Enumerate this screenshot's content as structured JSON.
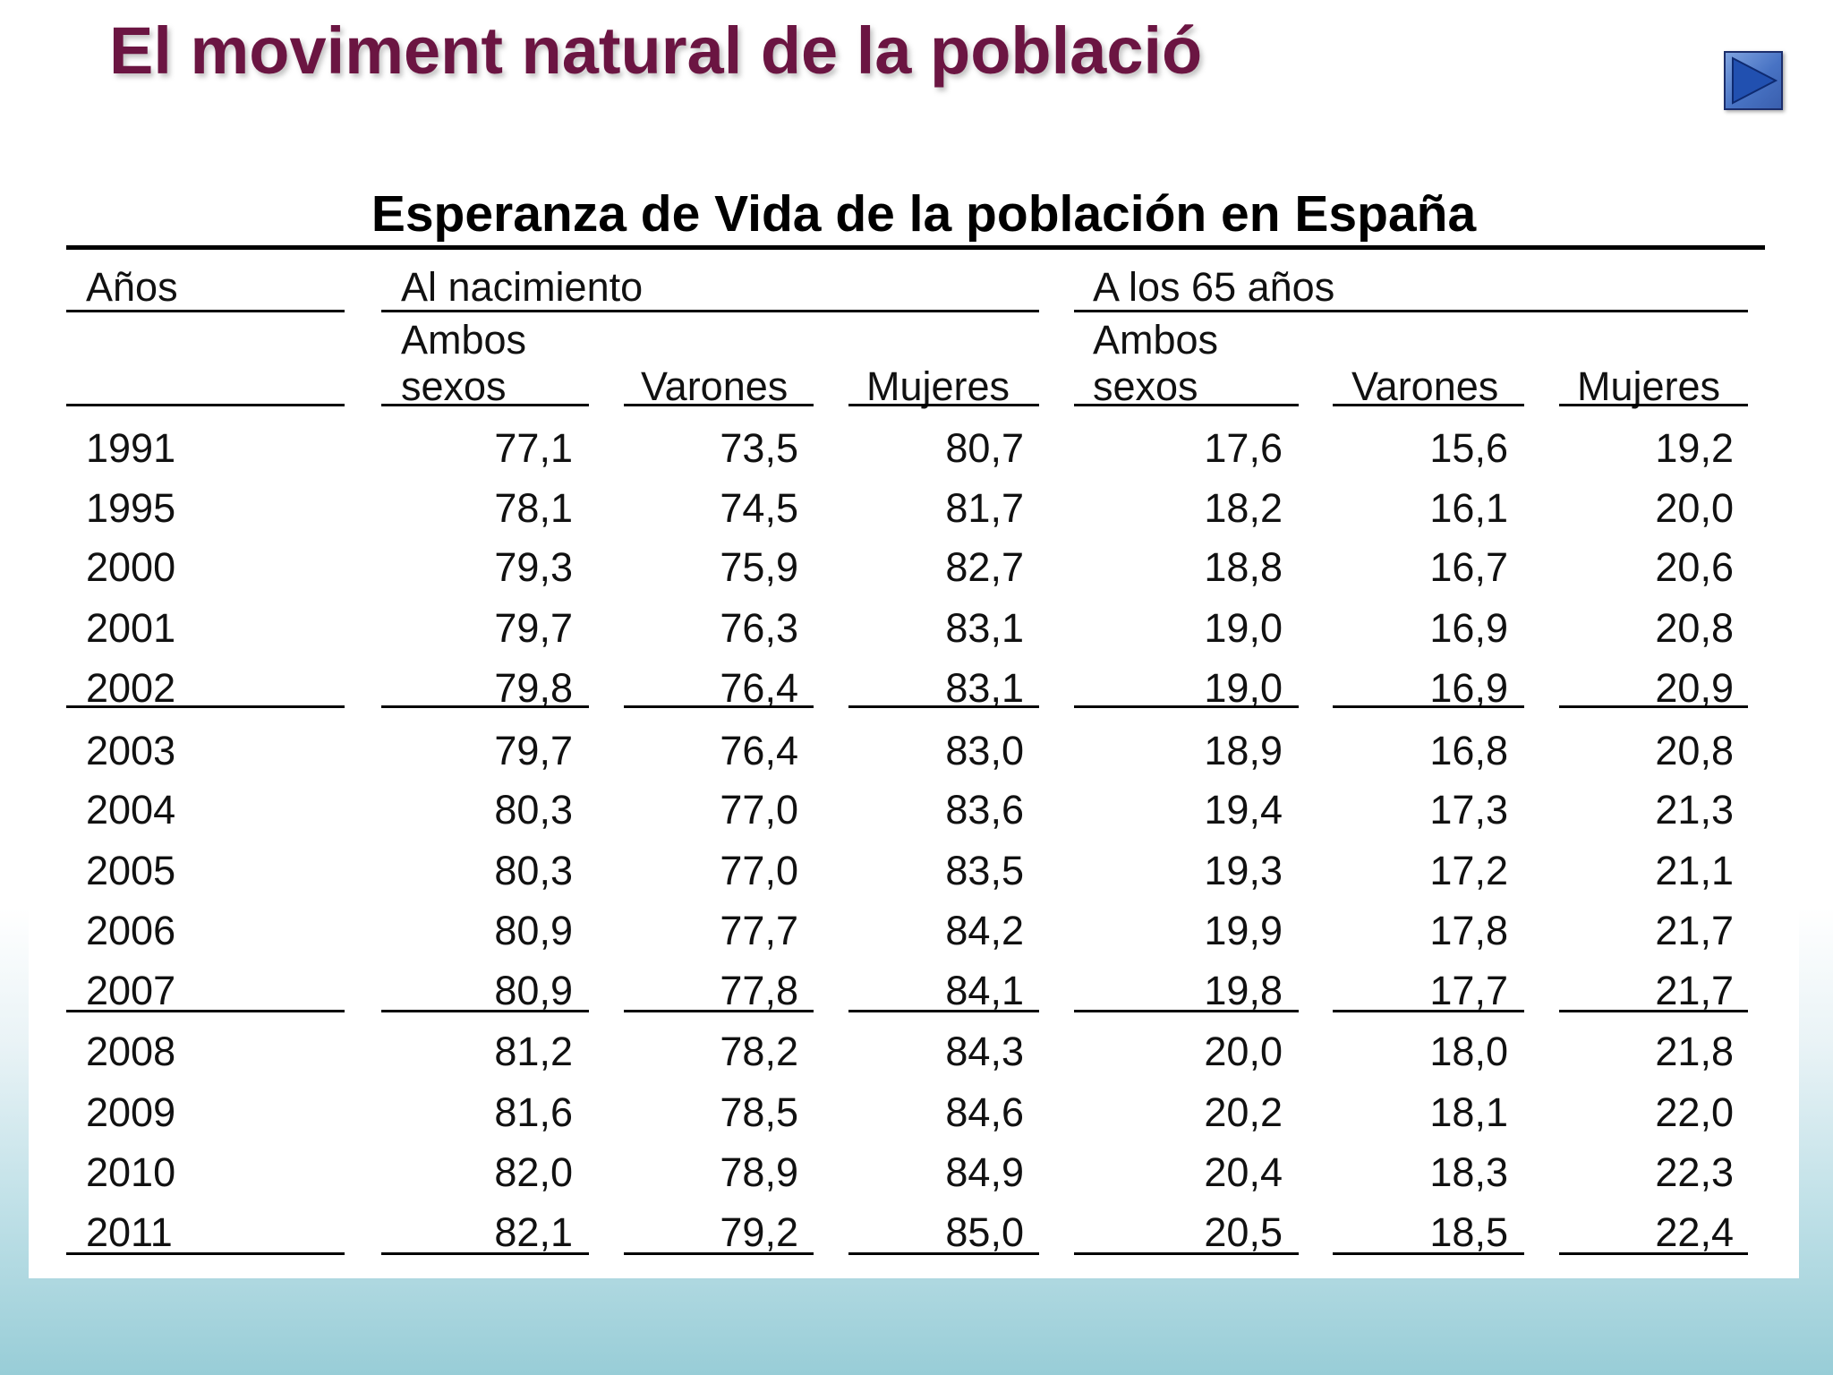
{
  "slide": {
    "title": "El moviment natural de la població"
  },
  "table": {
    "title": "Esperanza de Vida de la población en España",
    "headers": {
      "years": "Años",
      "group_birth": "Al nacimiento",
      "group_65": "A los 65 años",
      "ambos_line1": "Ambos",
      "ambos_line2": "sexos",
      "varones": "Varones",
      "mujeres": "Mujeres"
    },
    "rows": [
      {
        "year": "1991",
        "values": [
          "77,1",
          "73,5",
          "80,7",
          "17,6",
          "15,6",
          "19,2"
        ]
      },
      {
        "year": "1995",
        "values": [
          "78,1",
          "74,5",
          "81,7",
          "18,2",
          "16,1",
          "20,0"
        ]
      },
      {
        "year": "2000",
        "values": [
          "79,3",
          "75,9",
          "82,7",
          "18,8",
          "16,7",
          "20,6"
        ]
      },
      {
        "year": "2001",
        "values": [
          "79,7",
          "76,3",
          "83,1",
          "19,0",
          "16,9",
          "20,8"
        ]
      },
      {
        "year": "2002",
        "values": [
          "79,8",
          "76,4",
          "83,1",
          "19,0",
          "16,9",
          "20,9"
        ]
      },
      {
        "year": "2003",
        "values": [
          "79,7",
          "76,4",
          "83,0",
          "18,9",
          "16,8",
          "20,8"
        ]
      },
      {
        "year": "2004",
        "values": [
          "80,3",
          "77,0",
          "83,6",
          "19,4",
          "17,3",
          "21,3"
        ]
      },
      {
        "year": "2005",
        "values": [
          "80,3",
          "77,0",
          "83,5",
          "19,3",
          "17,2",
          "21,1"
        ]
      },
      {
        "year": "2006",
        "values": [
          "80,9",
          "77,7",
          "84,2",
          "19,9",
          "17,8",
          "21,7"
        ]
      },
      {
        "year": "2007",
        "values": [
          "80,9",
          "77,8",
          "84,1",
          "19,8",
          "17,7",
          "21,7"
        ]
      },
      {
        "year": "2008",
        "values": [
          "81,2",
          "78,2",
          "84,3",
          "20,0",
          "18,0",
          "21,8"
        ]
      },
      {
        "year": "2009",
        "values": [
          "81,6",
          "78,5",
          "84,6",
          "20,2",
          "18,1",
          "22,0"
        ]
      },
      {
        "year": "2010",
        "values": [
          "82,0",
          "78,9",
          "84,9",
          "20,4",
          "18,3",
          "22,3"
        ]
      },
      {
        "year": "2011",
        "values": [
          "82,1",
          "79,2",
          "85,0",
          "20,5",
          "18,5",
          "22,4"
        ]
      }
    ]
  },
  "nav": {
    "next_icon": "play-triangle-icon",
    "colors": {
      "button_fill": "#4873c4",
      "arrow_fill": "#1f4aa8",
      "title_color": "#6b1542"
    }
  }
}
